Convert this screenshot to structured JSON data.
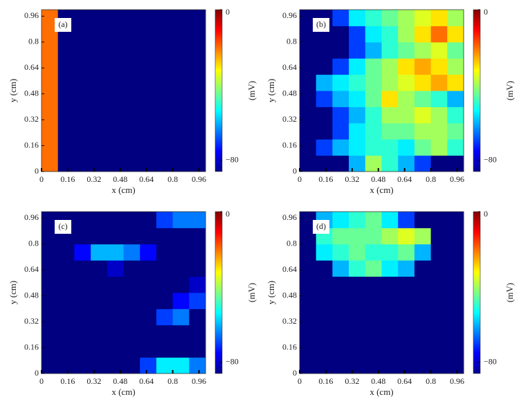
{
  "chart_data": [
    {
      "type": "heatmap",
      "panel_label": "(a)",
      "xlabel": "x (cm)",
      "ylabel": "y (cm)",
      "colorbar_label": "(mV)",
      "xlim": [
        0,
        1
      ],
      "ylim": [
        0,
        1
      ],
      "xticks": [
        0,
        0.16,
        0.32,
        0.48,
        0.64,
        0.8,
        0.96
      ],
      "yticks": [
        0,
        0.16,
        0.32,
        0.48,
        0.64,
        0.8,
        0.96
      ],
      "clim": [
        -86,
        0
      ],
      "cticks": [
        0,
        {
          "value": -80,
          "label": "−80"
        }
      ],
      "x": [
        0.05,
        0.15,
        0.25,
        0.35,
        0.45,
        0.55,
        0.65,
        0.75,
        0.85,
        0.95
      ],
      "y": [
        0.05,
        0.15,
        0.25,
        0.35,
        0.45,
        0.55,
        0.65,
        0.75,
        0.85,
        0.95
      ],
      "z": [
        [
          -20,
          -86,
          -86,
          -86,
          -86,
          -86,
          -86,
          -86,
          -86,
          -86
        ],
        [
          -20,
          -86,
          -86,
          -86,
          -86,
          -86,
          -86,
          -86,
          -86,
          -86
        ],
        [
          -20,
          -86,
          -86,
          -86,
          -86,
          -86,
          -86,
          -86,
          -86,
          -86
        ],
        [
          -20,
          -86,
          -86,
          -86,
          -86,
          -86,
          -86,
          -86,
          -86,
          -86
        ],
        [
          -20,
          -86,
          -86,
          -86,
          -86,
          -86,
          -86,
          -86,
          -86,
          -86
        ],
        [
          -20,
          -86,
          -86,
          -86,
          -86,
          -86,
          -86,
          -86,
          -86,
          -86
        ],
        [
          -20,
          -86,
          -86,
          -86,
          -86,
          -86,
          -86,
          -86,
          -86,
          -86
        ],
        [
          -20,
          -86,
          -86,
          -86,
          -86,
          -86,
          -86,
          -86,
          -86,
          -86
        ],
        [
          -20,
          -86,
          -86,
          -86,
          -86,
          -86,
          -86,
          -86,
          -86,
          -86
        ],
        [
          -20,
          -86,
          -86,
          -86,
          -86,
          -86,
          -86,
          -86,
          -86,
          -86
        ]
      ]
    },
    {
      "type": "heatmap",
      "panel_label": "(b)",
      "xlabel": "x (cm)",
      "ylabel": "y (cm)",
      "colorbar_label": "(mV)",
      "xlim": [
        0,
        1
      ],
      "ylim": [
        0,
        1
      ],
      "xticks": [
        0,
        0.16,
        0.32,
        0.48,
        0.64,
        0.8,
        0.96
      ],
      "yticks": [
        0,
        0.16,
        0.32,
        0.48,
        0.64,
        0.8,
        0.96
      ],
      "clim": [
        -86,
        0
      ],
      "cticks": [
        0,
        {
          "value": -80,
          "label": "−80"
        }
      ],
      "x": [
        0.05,
        0.15,
        0.25,
        0.35,
        0.45,
        0.55,
        0.65,
        0.75,
        0.85,
        0.95
      ],
      "y": [
        0.05,
        0.15,
        0.25,
        0.35,
        0.45,
        0.55,
        0.65,
        0.75,
        0.85,
        0.95
      ],
      "z": [
        [
          -86,
          -86,
          -86,
          -60,
          -40,
          -50,
          -60,
          -70,
          -86,
          -86
        ],
        [
          -86,
          -70,
          -60,
          -55,
          -50,
          -50,
          -55,
          -45,
          -40,
          -50
        ],
        [
          -86,
          -86,
          -70,
          -55,
          -50,
          -45,
          -45,
          -40,
          -40,
          -45
        ],
        [
          -86,
          -86,
          -70,
          -60,
          -50,
          -40,
          -40,
          -35,
          -40,
          -50
        ],
        [
          -86,
          -70,
          -60,
          -55,
          -45,
          -30,
          -40,
          -45,
          -50,
          -60
        ],
        [
          -86,
          -60,
          -55,
          -50,
          -45,
          -40,
          -35,
          -30,
          -25,
          -30
        ],
        [
          -86,
          -86,
          -70,
          -55,
          -45,
          -40,
          -30,
          -25,
          -30,
          -40
        ],
        [
          -86,
          -86,
          -86,
          -70,
          -60,
          -50,
          -45,
          -40,
          -35,
          -45
        ],
        [
          -86,
          -86,
          -86,
          -70,
          -55,
          -50,
          -40,
          -30,
          -20,
          -30
        ],
        [
          -86,
          -86,
          -70,
          -55,
          -50,
          -45,
          -40,
          -35,
          -30,
          -40
        ]
      ]
    },
    {
      "type": "heatmap",
      "panel_label": "(c)",
      "xlabel": "x (cm)",
      "ylabel": "y (cm)",
      "colorbar_label": "(mV)",
      "xlim": [
        0,
        1
      ],
      "ylim": [
        0,
        1
      ],
      "xticks": [
        0,
        0.16,
        0.32,
        0.48,
        0.64,
        0.8,
        0.96
      ],
      "yticks": [
        0,
        0.16,
        0.32,
        0.48,
        0.64,
        0.8,
        0.96
      ],
      "clim": [
        -86,
        0
      ],
      "cticks": [
        0,
        {
          "value": -80,
          "label": "−80"
        }
      ],
      "x": [
        0.05,
        0.15,
        0.25,
        0.35,
        0.45,
        0.55,
        0.65,
        0.75,
        0.85,
        0.95
      ],
      "y": [
        0.05,
        0.15,
        0.25,
        0.35,
        0.45,
        0.55,
        0.65,
        0.75,
        0.85,
        0.95
      ],
      "z": [
        [
          -86,
          -86,
          -86,
          -86,
          -86,
          -86,
          -70,
          -55,
          -55,
          -65
        ],
        [
          -86,
          -86,
          -86,
          -86,
          -86,
          -86,
          -86,
          -86,
          -86,
          -86
        ],
        [
          -86,
          -86,
          -86,
          -86,
          -86,
          -86,
          -86,
          -86,
          -86,
          -86
        ],
        [
          -86,
          -86,
          -86,
          -86,
          -86,
          -86,
          -86,
          -70,
          -65,
          -86
        ],
        [
          -86,
          -86,
          -86,
          -86,
          -86,
          -86,
          -86,
          -86,
          -75,
          -70
        ],
        [
          -86,
          -86,
          -86,
          -86,
          -86,
          -86,
          -86,
          -86,
          -86,
          -80
        ],
        [
          -86,
          -86,
          -86,
          -86,
          -80,
          -86,
          -86,
          -86,
          -86,
          -86
        ],
        [
          -86,
          -86,
          -75,
          -60,
          -60,
          -65,
          -75,
          -86,
          -86,
          -86
        ],
        [
          -86,
          -86,
          -86,
          -86,
          -86,
          -86,
          -86,
          -86,
          -86,
          -86
        ],
        [
          -86,
          -86,
          -86,
          -86,
          -86,
          -86,
          -86,
          -70,
          -65,
          -65
        ]
      ]
    },
    {
      "type": "heatmap",
      "panel_label": "(d)",
      "xlabel": "x (cm)",
      "ylabel": "y (cm)",
      "colorbar_label": "(mV)",
      "xlim": [
        0,
        1
      ],
      "ylim": [
        0,
        1
      ],
      "xticks": [
        0,
        0.16,
        0.32,
        0.48,
        0.64,
        0.8,
        0.96
      ],
      "yticks": [
        0,
        0.16,
        0.32,
        0.48,
        0.64,
        0.8,
        0.96
      ],
      "clim": [
        -86,
        0
      ],
      "cticks": [
        0,
        {
          "value": -80,
          "label": "−80"
        }
      ],
      "x": [
        0.05,
        0.15,
        0.25,
        0.35,
        0.45,
        0.55,
        0.65,
        0.75,
        0.85,
        0.95
      ],
      "y": [
        0.05,
        0.15,
        0.25,
        0.35,
        0.45,
        0.55,
        0.65,
        0.75,
        0.85,
        0.95
      ],
      "z": [
        [
          -86,
          -86,
          -86,
          -86,
          -86,
          -86,
          -86,
          -86,
          -86,
          -86
        ],
        [
          -86,
          -86,
          -86,
          -86,
          -86,
          -86,
          -86,
          -86,
          -86,
          -86
        ],
        [
          -86,
          -86,
          -86,
          -86,
          -86,
          -86,
          -86,
          -86,
          -86,
          -86
        ],
        [
          -86,
          -86,
          -86,
          -86,
          -86,
          -86,
          -86,
          -86,
          -86,
          -86
        ],
        [
          -86,
          -86,
          -86,
          -86,
          -86,
          -86,
          -86,
          -86,
          -86,
          -86
        ],
        [
          -86,
          -86,
          -86,
          -86,
          -86,
          -86,
          -86,
          -86,
          -86,
          -86
        ],
        [
          -86,
          -86,
          -60,
          -50,
          -45,
          -55,
          -60,
          -86,
          -86,
          -86
        ],
        [
          -86,
          -55,
          -50,
          -45,
          -50,
          -50,
          -45,
          -60,
          -86,
          -86
        ],
        [
          -86,
          -50,
          -45,
          -45,
          -45,
          -40,
          -35,
          -40,
          -86,
          -86
        ],
        [
          -86,
          -60,
          -55,
          -50,
          -45,
          -55,
          -70,
          -86,
          -86,
          -86
        ]
      ]
    }
  ]
}
